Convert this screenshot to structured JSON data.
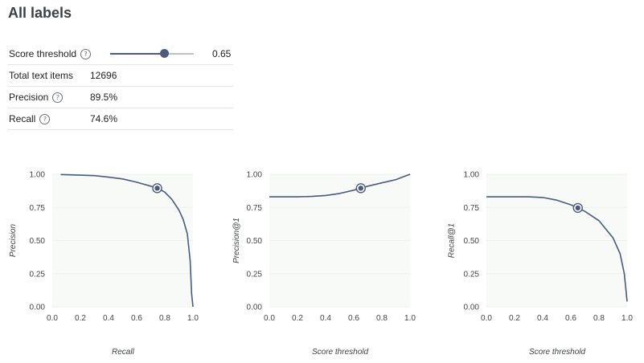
{
  "title": "All labels",
  "metrics": {
    "score_threshold": {
      "label": "Score threshold",
      "value": 0.65,
      "display": "0.65"
    },
    "total_text_items": {
      "label": "Total text items",
      "value": "12696"
    },
    "precision": {
      "label": "Precision",
      "value": "89.5%"
    },
    "recall": {
      "label": "Recall",
      "value": "74.6%"
    }
  },
  "help_icon": "question-circle-icon",
  "colors": {
    "line": "#4b5b7e",
    "plot_bg": "#f8faf8",
    "accent": "#4b5b7e"
  },
  "chart_data": [
    {
      "type": "line",
      "xlabel": "Recall",
      "ylabel": "Precision",
      "xlim": [
        0,
        1
      ],
      "ylim": [
        0,
        1
      ],
      "xticks": [
        "0.0",
        "0.2",
        "0.4",
        "0.6",
        "0.8",
        "1.0"
      ],
      "yticks": [
        "0.00",
        "0.25",
        "0.50",
        "0.75",
        "1.00"
      ],
      "series": [
        {
          "x": [
            0.06,
            0.15,
            0.3,
            0.4,
            0.5,
            0.6,
            0.7,
            0.75,
            0.8,
            0.85,
            0.9,
            0.93,
            0.96,
            0.98,
            0.99,
            1.0
          ],
          "y": [
            0.998,
            0.995,
            0.99,
            0.978,
            0.965,
            0.94,
            0.91,
            0.895,
            0.865,
            0.81,
            0.73,
            0.66,
            0.55,
            0.35,
            0.1,
            0.0
          ]
        }
      ],
      "marker": {
        "x": 0.746,
        "y": 0.895
      }
    },
    {
      "type": "line",
      "xlabel": "Score threshold",
      "ylabel": "Precision@1",
      "xlim": [
        0,
        1
      ],
      "ylim": [
        0,
        1
      ],
      "xticks": [
        "0.0",
        "0.2",
        "0.4",
        "0.6",
        "0.8",
        "1.0"
      ],
      "yticks": [
        "0.00",
        "0.25",
        "0.50",
        "0.75",
        "1.00"
      ],
      "series": [
        {
          "x": [
            0.0,
            0.1,
            0.2,
            0.3,
            0.4,
            0.5,
            0.6,
            0.65,
            0.7,
            0.8,
            0.9,
            0.95,
            1.0
          ],
          "y": [
            0.83,
            0.83,
            0.83,
            0.833,
            0.84,
            0.855,
            0.88,
            0.895,
            0.91,
            0.935,
            0.96,
            0.98,
            1.0
          ]
        }
      ],
      "marker": {
        "x": 0.65,
        "y": 0.895
      }
    },
    {
      "type": "line",
      "xlabel": "Score threshold",
      "ylabel": "Recall@1",
      "xlim": [
        0,
        1
      ],
      "ylim": [
        0,
        1
      ],
      "xticks": [
        "0.0",
        "0.2",
        "0.4",
        "0.6",
        "0.8",
        "1.0"
      ],
      "yticks": [
        "0.00",
        "0.25",
        "0.50",
        "0.75",
        "1.00"
      ],
      "series": [
        {
          "x": [
            0.0,
            0.1,
            0.2,
            0.3,
            0.4,
            0.5,
            0.6,
            0.65,
            0.7,
            0.8,
            0.9,
            0.95,
            0.98,
            1.0
          ],
          "y": [
            0.83,
            0.83,
            0.83,
            0.83,
            0.825,
            0.805,
            0.77,
            0.746,
            0.72,
            0.65,
            0.52,
            0.4,
            0.25,
            0.04
          ]
        }
      ],
      "marker": {
        "x": 0.65,
        "y": 0.746
      }
    }
  ]
}
